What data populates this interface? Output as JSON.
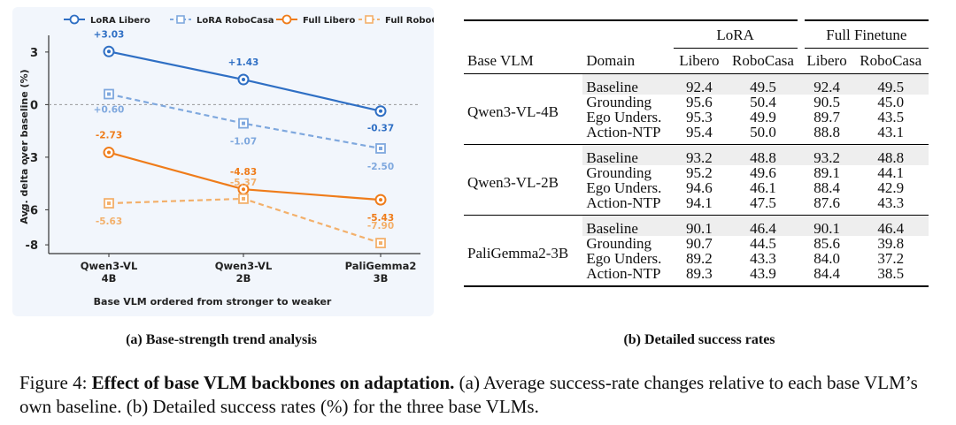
{
  "chart_data": {
    "type": "line",
    "categories": [
      "Qwen3-VL\n4B",
      "Qwen3-VL\n2B",
      "PaliGemma2\n3B"
    ],
    "category_lines": [
      [
        "Qwen3-VL",
        "4B"
      ],
      [
        "Qwen3-VL",
        "2B"
      ],
      [
        "PaliGemma2",
        "3B"
      ]
    ],
    "xlabel": "Base VLM ordered from stronger to weaker",
    "ylabel": "Avg. delta over baseline (%)",
    "ylim": [
      -8.5,
      3.7
    ],
    "yticks": [
      "3",
      "0",
      "-3",
      "-6",
      "-8"
    ],
    "ytick_values": [
      3,
      0,
      -3,
      -6,
      -8
    ],
    "legend_position": "top",
    "series": [
      {
        "name": "LoRA Libero",
        "values": [
          3.03,
          1.43,
          -0.37
        ],
        "labels": [
          "+3.03",
          "+1.43",
          "-0.37"
        ],
        "color": "#2f6fc4",
        "dashed": false,
        "marker": "circle"
      },
      {
        "name": "LoRA RoboCasa",
        "values": [
          0.6,
          -1.07,
          -2.5
        ],
        "labels": [
          "+0.60",
          "-1.07",
          "-2.50"
        ],
        "color": "#7fa8de",
        "dashed": true,
        "marker": "square"
      },
      {
        "name": "Full Libero",
        "values": [
          -2.73,
          -4.83,
          -5.43
        ],
        "labels": [
          "-2.73",
          "-4.83",
          "-5.43"
        ],
        "color": "#ef7c1a",
        "dashed": false,
        "marker": "circle"
      },
      {
        "name": "Full RoboCasa",
        "values": [
          -5.63,
          -5.37,
          -7.9
        ],
        "labels": [
          "-5.63",
          "-5.37",
          "-7.90"
        ],
        "color": "#f3b06b",
        "dashed": true,
        "marker": "square"
      }
    ]
  },
  "table": {
    "group_headers": {
      "lora": "LoRA",
      "full": "Full Finetune"
    },
    "col_headers": [
      "Base VLM",
      "Domain",
      "Libero",
      "RoboCasa",
      "Libero",
      "RoboCasa"
    ],
    "groups": [
      {
        "vlm": "Qwen3-VL-4B",
        "rows": [
          {
            "domain": "Baseline",
            "v": [
              "92.4",
              "49.5",
              "92.4",
              "49.5"
            ]
          },
          {
            "domain": "Grounding",
            "v": [
              "95.6",
              "50.4",
              "90.5",
              "45.0"
            ]
          },
          {
            "domain": "Ego Unders.",
            "v": [
              "95.3",
              "49.9",
              "89.7",
              "43.5"
            ]
          },
          {
            "domain": "Action-NTP",
            "v": [
              "95.4",
              "50.0",
              "88.8",
              "43.1"
            ]
          }
        ]
      },
      {
        "vlm": "Qwen3-VL-2B",
        "rows": [
          {
            "domain": "Baseline",
            "v": [
              "93.2",
              "48.8",
              "93.2",
              "48.8"
            ]
          },
          {
            "domain": "Grounding",
            "v": [
              "95.2",
              "49.6",
              "89.1",
              "44.1"
            ]
          },
          {
            "domain": "Ego Unders.",
            "v": [
              "94.6",
              "46.1",
              "88.4",
              "42.9"
            ]
          },
          {
            "domain": "Action-NTP",
            "v": [
              "94.1",
              "47.5",
              "87.6",
              "43.3"
            ]
          }
        ]
      },
      {
        "vlm": "PaliGemma2-3B",
        "rows": [
          {
            "domain": "Baseline",
            "v": [
              "90.1",
              "46.4",
              "90.1",
              "46.4"
            ]
          },
          {
            "domain": "Grounding",
            "v": [
              "90.7",
              "44.5",
              "85.6",
              "39.8"
            ]
          },
          {
            "domain": "Ego Unders.",
            "v": [
              "89.2",
              "43.3",
              "84.0",
              "37.2"
            ]
          },
          {
            "domain": "Action-NTP",
            "v": [
              "89.3",
              "43.9",
              "84.4",
              "38.5"
            ]
          }
        ]
      }
    ]
  },
  "captions": {
    "a": "(a) Base-strength trend analysis",
    "b": "(b) Detailed success rates",
    "figure_prefix": "Figure 4: ",
    "figure_bold": "Effect of base VLM backbones on adaptation.",
    "figure_rest": " (a) Average success-rate changes relative to each base VLM’s own baseline. (b) Detailed success rates (%) for the three base VLMs."
  },
  "colors": {
    "panel_bg": "#f2f6fc",
    "axis": "#333333",
    "zero_line": "#999999"
  }
}
